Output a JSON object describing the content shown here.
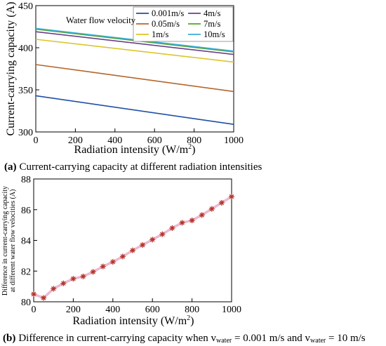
{
  "chart_data": [
    {
      "type": "line",
      "caption": {
        "tag": "(a)",
        "text": "Current-carrying capacity at different radiation intensities"
      },
      "xlabel": "Radiation intensity (W/m",
      "xlabel_sup": "2",
      "xlabel_end": ")",
      "ylabel": "Current-carrying capacity (A)",
      "xlim": [
        0,
        1000
      ],
      "ylim": [
        300,
        450
      ],
      "xticks": [
        0,
        200,
        400,
        600,
        800,
        1000
      ],
      "yticks": [
        300,
        350,
        400,
        450
      ],
      "legend_title": "Water flow velocity",
      "legend_position": "top-right",
      "grid": false,
      "x": [
        0,
        1000
      ],
      "series": [
        {
          "name": "0.001m/s",
          "color": "#1f4fa6",
          "values": [
            343,
            309
          ]
        },
        {
          "name": "0.05m/s",
          "color": "#b5652a",
          "values": [
            380,
            348
          ]
        },
        {
          "name": "1m/s",
          "color": "#dcc52a",
          "values": [
            410,
            383
          ]
        },
        {
          "name": "4m/s",
          "color": "#6b3f8c",
          "values": [
            419,
            392
          ]
        },
        {
          "name": "7m/s",
          "color": "#4fa52c",
          "values": [
            422,
            395
          ]
        },
        {
          "name": "10m/s",
          "color": "#3aaedc",
          "values": [
            423,
            396
          ]
        }
      ]
    },
    {
      "type": "line",
      "caption": {
        "tag": "(b)",
        "text_pre": "Difference in current-carrying capacity when v",
        "sub1": "water",
        "text_mid": " = 0.001 m/s and v",
        "sub2": "water",
        "text_end": " = 10 m/s"
      },
      "xlabel": "Radiation intensity (W/m",
      "xlabel_sup": "2",
      "xlabel_end": ")",
      "ylabel_line1": "Difference in current-carrying capacity",
      "ylabel_line2": "at different water flow velocities (A)",
      "xlim": [
        0,
        1000
      ],
      "ylim": [
        80,
        88
      ],
      "xticks": [
        0,
        200,
        400,
        600,
        800,
        1000
      ],
      "yticks": [
        80,
        82,
        84,
        86,
        88
      ],
      "grid": false,
      "line_color": "#e8a8c4",
      "marker_color": "#b5332a",
      "x": [
        0,
        50,
        100,
        150,
        200,
        250,
        300,
        350,
        400,
        450,
        500,
        550,
        600,
        650,
        700,
        750,
        800,
        850,
        900,
        950,
        1000
      ],
      "values": [
        80.5,
        80.25,
        80.85,
        81.2,
        81.5,
        81.65,
        81.95,
        82.3,
        82.6,
        82.95,
        83.35,
        83.7,
        84.05,
        84.4,
        84.8,
        85.15,
        85.3,
        85.65,
        86.05,
        86.45,
        86.85
      ]
    }
  ]
}
